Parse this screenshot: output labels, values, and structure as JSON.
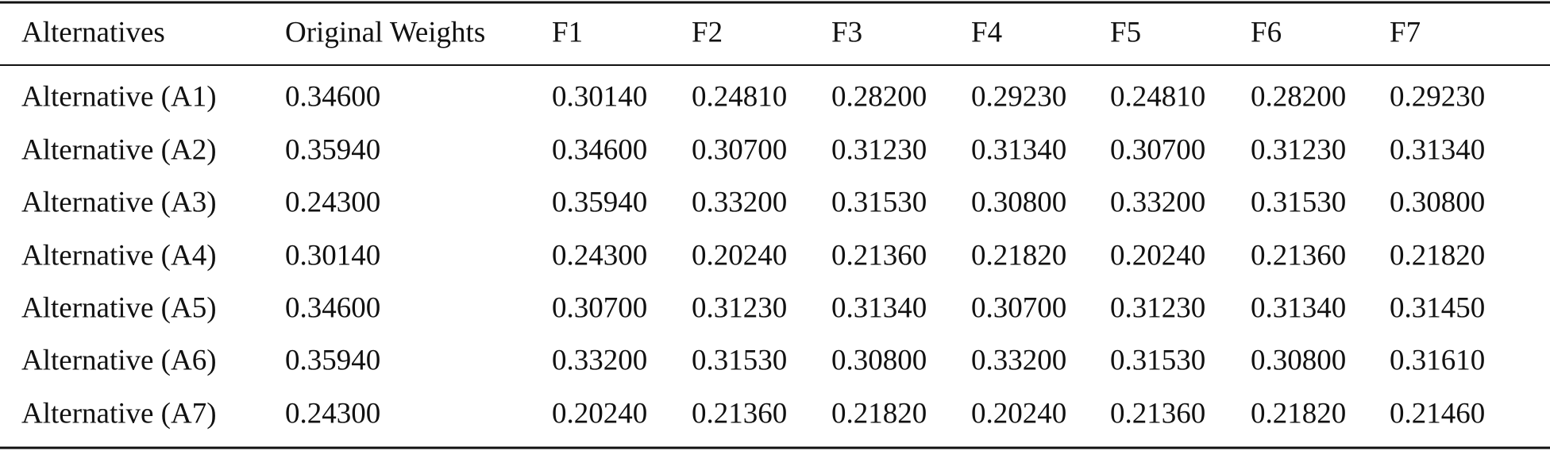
{
  "table": {
    "header": [
      "Alternatives",
      "Original Weights",
      "F1",
      "F2",
      "F3",
      "F4",
      "F5",
      "F6",
      "F7"
    ],
    "rows": [
      [
        "Alternative (A1)",
        "0.34600",
        "0.30140",
        "0.24810",
        "0.28200",
        "0.29230",
        "0.24810",
        "0.28200",
        "0.29230"
      ],
      [
        "Alternative (A2)",
        "0.35940",
        "0.34600",
        "0.30700",
        "0.31230",
        "0.31340",
        "0.30700",
        "0.31230",
        "0.31340"
      ],
      [
        "Alternative (A3)",
        "0.24300",
        "0.35940",
        "0.33200",
        "0.31530",
        "0.30800",
        "0.33200",
        "0.31530",
        "0.30800"
      ],
      [
        "Alternative (A4)",
        "0.30140",
        "0.24300",
        "0.20240",
        "0.21360",
        "0.21820",
        "0.20240",
        "0.21360",
        "0.21820"
      ],
      [
        "Alternative (A5)",
        "0.34600",
        "0.30700",
        "0.31230",
        "0.31340",
        "0.30700",
        "0.31230",
        "0.31340",
        "0.31450"
      ],
      [
        "Alternative (A6)",
        "0.35940",
        "0.33200",
        "0.31530",
        "0.30800",
        "0.33200",
        "0.31530",
        "0.30800",
        "0.31610"
      ],
      [
        "Alternative (A7)",
        "0.24300",
        "0.20240",
        "0.21360",
        "0.21820",
        "0.20240",
        "0.21360",
        "0.21820",
        "0.21460"
      ]
    ]
  }
}
